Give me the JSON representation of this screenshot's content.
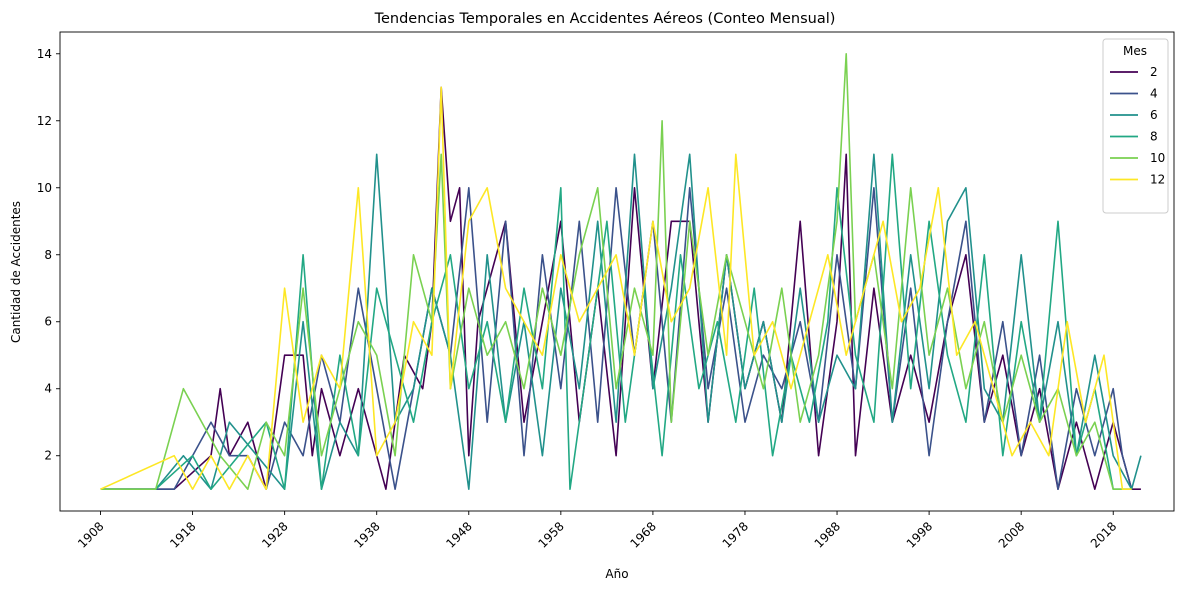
{
  "chart_data": {
    "type": "line",
    "title": "Tendencias Temporales en Accidentes Aéreos (Conteo Mensual)",
    "xlabel": "Año",
    "ylabel": "Cantidad de Accidentes",
    "xlim": [
      1903.6,
      2024.6
    ],
    "ylim": [
      0.35,
      14.65
    ],
    "xticks": [
      1908,
      1918,
      1928,
      1938,
      1948,
      1958,
      1968,
      1978,
      1988,
      1998,
      2008,
      2018
    ],
    "xtick_labels": [
      "1908",
      "1918",
      "1928",
      "1938",
      "1948",
      "1958",
      "1968",
      "1978",
      "1988",
      "1998",
      "2008",
      "2018"
    ],
    "yticks": [
      2,
      4,
      6,
      8,
      10,
      12,
      14
    ],
    "ytick_labels": [
      "2",
      "4",
      "6",
      "8",
      "10",
      "12",
      "14"
    ],
    "grid": false,
    "legend": {
      "title": "Mes",
      "placement": "top-right"
    },
    "series": [
      {
        "name": "2",
        "color": "#440154",
        "x": [
          1908,
          1912,
          1916,
          1920,
          1921,
          1922,
          1924,
          1926,
          1928,
          1930,
          1931,
          1932,
          1934,
          1936,
          1938,
          1939,
          1941,
          1943,
          1944,
          1945,
          1946,
          1947,
          1948,
          1949,
          1950,
          1952,
          1954,
          1956,
          1958,
          1960,
          1962,
          1964,
          1966,
          1968,
          1970,
          1972,
          1974,
          1976,
          1978,
          1980,
          1982,
          1984,
          1986,
          1988,
          1989,
          1990,
          1992,
          1994,
          1996,
          1998,
          2000,
          2002,
          2004,
          2006,
          2008,
          2010,
          2012,
          2014,
          2016,
          2018,
          2020,
          2021
        ],
        "values": [
          1,
          1,
          1,
          2,
          4,
          2,
          3,
          1,
          5,
          5,
          2,
          4,
          2,
          4,
          2,
          1,
          5,
          4,
          6,
          13,
          9,
          10,
          2,
          6,
          7,
          9,
          3,
          6,
          9,
          3,
          7,
          2,
          10,
          4,
          9,
          9,
          3,
          8,
          4,
          6,
          3,
          9,
          2,
          6,
          11,
          2,
          7,
          3,
          5,
          3,
          6,
          8,
          3,
          5,
          2,
          4,
          1,
          3,
          1,
          3,
          1,
          1
        ]
      },
      {
        "name": "4",
        "color": "#3b528b",
        "x": [
          1908,
          1913,
          1916,
          1918,
          1920,
          1922,
          1924,
          1926,
          1928,
          1930,
          1932,
          1934,
          1936,
          1938,
          1940,
          1942,
          1944,
          1946,
          1948,
          1950,
          1952,
          1954,
          1956,
          1958,
          1960,
          1962,
          1964,
          1966,
          1968,
          1970,
          1972,
          1974,
          1976,
          1978,
          1980,
          1982,
          1984,
          1986,
          1988,
          1990,
          1992,
          1994,
          1996,
          1998,
          2000,
          2002,
          2004,
          2006,
          2008,
          2010,
          2012,
          2014,
          2016,
          2018,
          2019,
          2020
        ],
        "values": [
          1,
          1,
          1,
          2,
          3,
          2,
          2,
          1,
          3,
          2,
          5,
          3,
          7,
          4,
          1,
          4,
          7,
          5,
          10,
          3,
          9,
          2,
          8,
          4,
          9,
          3,
          10,
          5,
          9,
          3,
          10,
          4,
          7,
          3,
          5,
          4,
          6,
          3,
          8,
          4,
          10,
          3,
          7,
          2,
          6,
          9,
          3,
          6,
          2,
          5,
          1,
          4,
          2,
          4,
          2,
          1
        ]
      },
      {
        "name": "6",
        "color": "#21918c",
        "x": [
          1908,
          1914,
          1917,
          1920,
          1922,
          1925,
          1928,
          1930,
          1932,
          1934,
          1936,
          1938,
          1940,
          1942,
          1944,
          1946,
          1948,
          1950,
          1952,
          1954,
          1956,
          1958,
          1960,
          1962,
          1964,
          1966,
          1968,
          1970,
          1972,
          1974,
          1976,
          1978,
          1980,
          1982,
          1984,
          1986,
          1988,
          1990,
          1992,
          1994,
          1996,
          1998,
          2000,
          2002,
          2004,
          2006,
          2008,
          2010,
          2012,
          2014,
          2016,
          2018,
          2020,
          2021
        ],
        "values": [
          1,
          1,
          2,
          1,
          3,
          2,
          1,
          6,
          1,
          3,
          2,
          11,
          3,
          4,
          7,
          5,
          1,
          8,
          3,
          6,
          2,
          7,
          4,
          9,
          3,
          11,
          4,
          7,
          11,
          3,
          8,
          4,
          6,
          3,
          7,
          3,
          5,
          4,
          11,
          3,
          8,
          4,
          9,
          10,
          4,
          3,
          8,
          3,
          6,
          2,
          5,
          2,
          1,
          2
        ]
      },
      {
        "name": "8",
        "color": "#22a884",
        "x": [
          1908,
          1914,
          1918,
          1920,
          1923,
          1926,
          1928,
          1930,
          1932,
          1934,
          1936,
          1938,
          1940,
          1942,
          1944,
          1946,
          1948,
          1950,
          1952,
          1954,
          1956,
          1958,
          1959,
          1961,
          1963,
          1965,
          1967,
          1969,
          1971,
          1973,
          1975,
          1977,
          1979,
          1981,
          1983,
          1985,
          1987,
          1988,
          1990,
          1992,
          1994,
          1996,
          1998,
          2000,
          2002,
          2004,
          2006,
          2008,
          2010,
          2012,
          2014,
          2016,
          2018,
          2020
        ],
        "values": [
          1,
          1,
          2,
          1,
          2,
          3,
          1,
          8,
          1,
          5,
          2,
          7,
          5,
          3,
          6,
          8,
          4,
          6,
          3,
          7,
          4,
          10,
          1,
          5,
          9,
          3,
          7,
          2,
          8,
          4,
          6,
          3,
          7,
          2,
          5,
          3,
          6,
          10,
          5,
          3,
          11,
          4,
          9,
          5,
          3,
          8,
          2,
          6,
          3,
          9,
          2,
          4,
          1,
          1
        ]
      },
      {
        "name": "10",
        "color": "#7ad151",
        "x": [
          1908,
          1914,
          1917,
          1919,
          1921,
          1924,
          1926,
          1928,
          1930,
          1932,
          1934,
          1936,
          1938,
          1940,
          1942,
          1944,
          1945,
          1946,
          1948,
          1950,
          1952,
          1954,
          1956,
          1958,
          1960,
          1962,
          1964,
          1966,
          1968,
          1969,
          1970,
          1972,
          1974,
          1976,
          1978,
          1980,
          1982,
          1984,
          1986,
          1988,
          1989,
          1990,
          1992,
          1994,
          1996,
          1998,
          2000,
          2002,
          2004,
          2006,
          2008,
          2010,
          2012,
          2014,
          2016,
          2018,
          2020
        ],
        "values": [
          1,
          1,
          4,
          3,
          2,
          1,
          3,
          2,
          7,
          2,
          4,
          6,
          5,
          2,
          8,
          6,
          11,
          4,
          7,
          5,
          6,
          4,
          7,
          5,
          8,
          10,
          4,
          7,
          5,
          12,
          3,
          9,
          5,
          8,
          6,
          4,
          7,
          3,
          5,
          9,
          14,
          6,
          8,
          4,
          10,
          5,
          7,
          4,
          6,
          3,
          5,
          3,
          4,
          2,
          3,
          1,
          1
        ]
      },
      {
        "name": "12",
        "color": "#fde725",
        "x": [
          1908,
          1916,
          1918,
          1920,
          1922,
          1924,
          1926,
          1928,
          1930,
          1932,
          1934,
          1936,
          1938,
          1940,
          1942,
          1944,
          1945,
          1946,
          1948,
          1950,
          1952,
          1954,
          1956,
          1958,
          1960,
          1962,
          1964,
          1966,
          1968,
          1970,
          1972,
          1974,
          1976,
          1977,
          1979,
          1981,
          1983,
          1985,
          1987,
          1989,
          1991,
          1993,
          1995,
          1997,
          1999,
          2001,
          2003,
          2005,
          2007,
          2009,
          2011,
          2013,
          2015,
          2017,
          2019,
          2020
        ],
        "values": [
          1,
          2,
          1,
          2,
          1,
          2,
          1,
          7,
          3,
          5,
          4,
          10,
          2,
          3,
          6,
          5,
          13,
          4,
          9,
          10,
          7,
          6,
          5,
          8,
          6,
          7,
          8,
          5,
          9,
          6,
          7,
          10,
          5,
          11,
          5,
          6,
          4,
          6,
          8,
          5,
          7,
          9,
          6,
          7,
          10,
          5,
          6,
          4,
          2,
          3,
          2,
          6,
          3,
          5,
          1,
          1
        ]
      }
    ]
  }
}
